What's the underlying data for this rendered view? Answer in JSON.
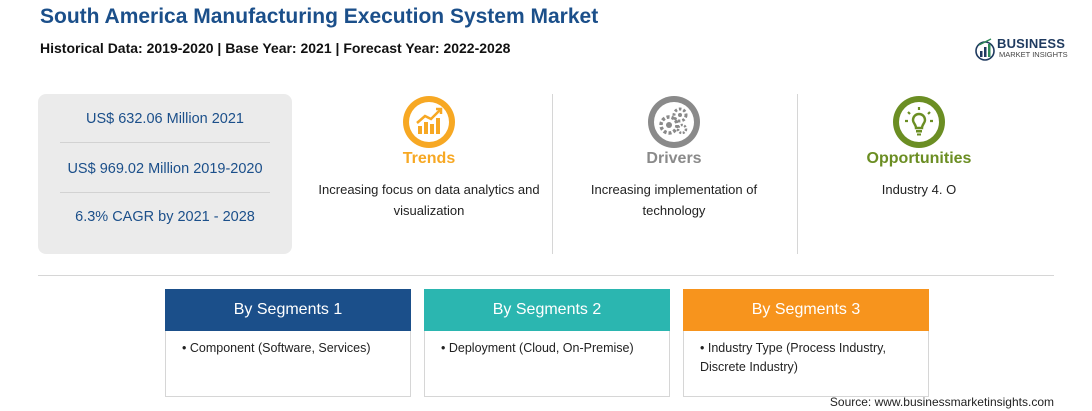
{
  "header": {
    "title": "South America Manufacturing Execution System Market",
    "subtitle": "Historical Data: 2019-2020 | Base Year: 2021 | Forecast Year: 2022-2028"
  },
  "logo": {
    "name": "BUSINESS",
    "tagline": "MARKET INSIGHTS"
  },
  "stats": [
    "US$ 632.06 Million 2021",
    "US$ 969.02 Million 2019-2020",
    "6.3% CAGR by 2021 - 2028"
  ],
  "features": [
    {
      "title": "Trends",
      "description": "Increasing focus on data analytics and visualization",
      "color": "#f7a823",
      "icon": "trend-chart-icon"
    },
    {
      "title": "Drivers",
      "description": "Increasing implementation of technology",
      "color": "#8a8a8a",
      "icon": "gears-icon"
    },
    {
      "title": "Opportunities",
      "description": "Industry 4. O",
      "color": "#6b8e23",
      "icon": "lightbulb-icon"
    }
  ],
  "segments": [
    {
      "title": "By Segments 1",
      "items": [
        "Component (Software, Services)"
      ],
      "color": "#1b4f8a"
    },
    {
      "title": "By Segments 2",
      "items": [
        "Deployment (Cloud, On-Premise)"
      ],
      "color": "#2bb6b0"
    },
    {
      "title": "By Segments 3",
      "items": [
        "Industry Type (Process Industry, Discrete Industry)"
      ],
      "color": "#f7941d"
    }
  ],
  "source": "Source: www.businessmarketinsights.com"
}
